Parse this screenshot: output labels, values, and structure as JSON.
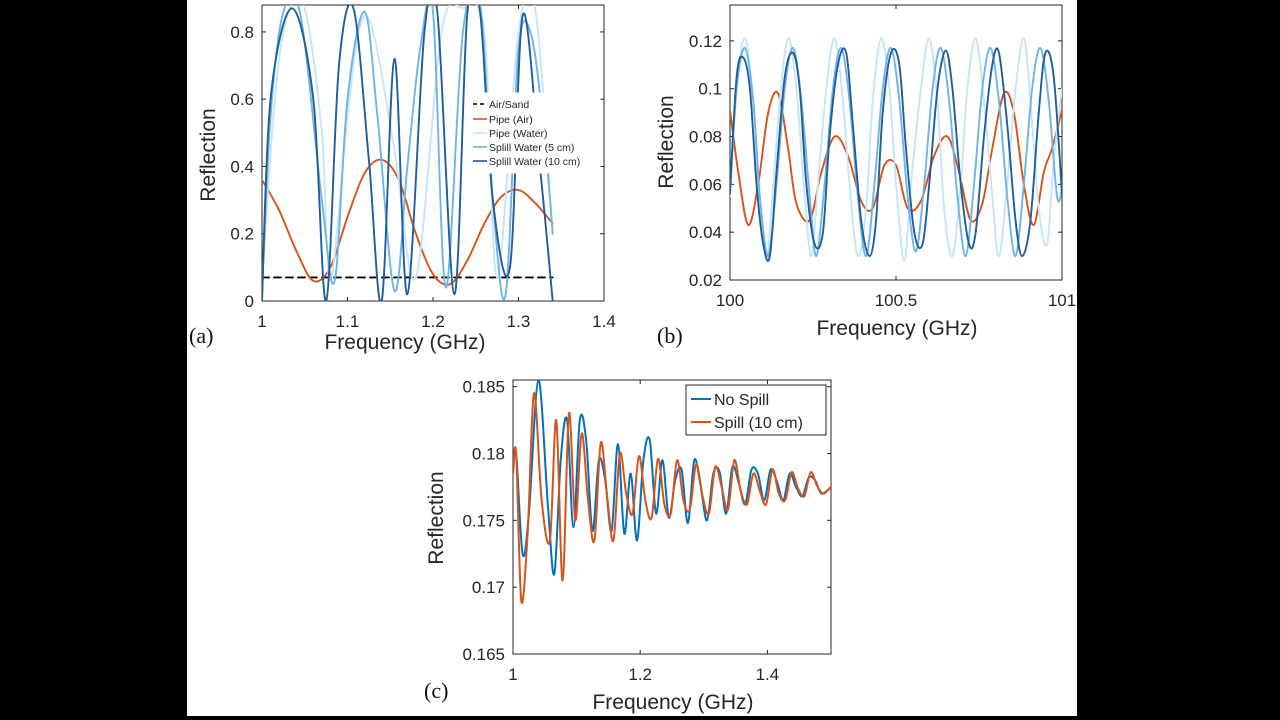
{
  "chart_data": [
    {
      "type": "line",
      "panel_label": "(a)",
      "xlabel": "Frequency (GHz)",
      "ylabel": "Reflection",
      "xlim": [
        1,
        1.4
      ],
      "ylim": [
        0,
        0.88
      ],
      "xticks": [
        1,
        1.1,
        1.2,
        1.3,
        1.4
      ],
      "xtick_labels": [
        "1",
        "1.1",
        "1.2",
        "1.3",
        "1.4"
      ],
      "yticks": [
        0,
        0.2,
        0.4,
        0.6,
        0.8
      ],
      "ytick_labels": [
        "0",
        "0.2",
        "0.4",
        "0.6",
        "0.8"
      ],
      "grid": false,
      "legend_position": "right",
      "series": [
        {
          "name": "Air/Sand",
          "color": "#000000",
          "dash": true,
          "x": [
            1,
            1.34
          ],
          "y": [
            0.07,
            0.07
          ]
        },
        {
          "name": "Pipe (Air)",
          "color": "#D95319",
          "x": [
            1,
            1.02,
            1.04,
            1.06,
            1.08,
            1.1,
            1.12,
            1.14,
            1.16,
            1.18,
            1.2,
            1.22,
            1.24,
            1.26,
            1.28,
            1.3,
            1.32,
            1.34
          ],
          "y": [
            0.36,
            0.27,
            0.15,
            0.06,
            0.1,
            0.25,
            0.38,
            0.42,
            0.36,
            0.2,
            0.08,
            0.05,
            0.12,
            0.23,
            0.31,
            0.33,
            0.29,
            0.23
          ]
        },
        {
          "name": "Pipe (Water)",
          "color": "#C6E5F6",
          "x": [
            1,
            1.015,
            1.03,
            1.05,
            1.07,
            1.08,
            1.1,
            1.115,
            1.13,
            1.155,
            1.18,
            1.21,
            1.235,
            1.26,
            1.275,
            1.3,
            1.32,
            1.34
          ],
          "y": [
            0.06,
            0.6,
            0.85,
            0.87,
            0.5,
            0.06,
            0.55,
            0.82,
            0.8,
            0.45,
            0.07,
            0.8,
            0.87,
            0.8,
            0.07,
            0.8,
            0.86,
            0.2
          ]
        },
        {
          "name": "Splill Water (5 cm)",
          "color": "#6EB5E6",
          "x": [
            1,
            1.01,
            1.025,
            1.045,
            1.07,
            1.085,
            1.1,
            1.12,
            1.135,
            1.155,
            1.17,
            1.185,
            1.2,
            1.215,
            1.235,
            1.255,
            1.27,
            1.285,
            1.3,
            1.315,
            1.33,
            1.34
          ],
          "y": [
            0.02,
            0.55,
            0.86,
            0.85,
            0.3,
            0.06,
            0.6,
            0.86,
            0.55,
            0.03,
            0.4,
            0.75,
            0.86,
            0.04,
            0.8,
            0.88,
            0.3,
            0.02,
            0.75,
            0.79,
            0.5,
            0.2
          ]
        },
        {
          "name": "Splill Water (10 cm)",
          "color": "#1F5D9C",
          "x": [
            1,
            1.01,
            1.035,
            1.06,
            1.075,
            1.09,
            1.107,
            1.125,
            1.14,
            1.155,
            1.17,
            1.19,
            1.205,
            1.225,
            1.24,
            1.255,
            1.27,
            1.29,
            1.305,
            1.325,
            1.34
          ],
          "y": [
            0.0,
            0.6,
            0.87,
            0.6,
            0.0,
            0.7,
            0.87,
            0.42,
            0.0,
            0.72,
            0.02,
            0.8,
            0.86,
            0.02,
            0.85,
            0.86,
            0.3,
            0.1,
            0.85,
            0.4,
            0.0
          ]
        }
      ]
    },
    {
      "type": "line",
      "panel_label": "(b)",
      "xlabel": "Frequency (GHz)",
      "ylabel": "Reflection",
      "xlim": [
        100,
        101
      ],
      "ylim": [
        0.02,
        0.135
      ],
      "xticks": [
        100,
        100.5,
        101
      ],
      "xtick_labels": [
        "100",
        "100.5",
        "101"
      ],
      "yticks": [
        0.02,
        0.04,
        0.06,
        0.08,
        0.1,
        0.12
      ],
      "ytick_labels": [
        "0.02",
        "0.04",
        "0.06",
        "0.08",
        "0.1",
        "0.12"
      ],
      "grid": false,
      "series": [
        {
          "name": "Pipe (Air)",
          "color": "#D95319",
          "x": [
            100,
            100.025,
            100.055,
            100.085,
            100.115,
            100.145,
            100.175,
            100.2,
            100.24,
            100.275,
            100.315,
            100.355,
            100.395,
            100.43,
            100.465,
            100.5,
            100.535,
            100.575,
            100.615,
            100.655,
            100.69,
            100.725,
            100.76,
            100.79,
            100.825,
            100.855,
            100.885,
            100.915,
            100.945,
            100.97,
            101
          ],
          "y": [
            0.091,
            0.065,
            0.043,
            0.06,
            0.09,
            0.098,
            0.075,
            0.052,
            0.045,
            0.065,
            0.08,
            0.072,
            0.053,
            0.05,
            0.068,
            0.068,
            0.05,
            0.053,
            0.072,
            0.08,
            0.065,
            0.045,
            0.052,
            0.075,
            0.098,
            0.09,
            0.06,
            0.043,
            0.065,
            0.075,
            0.091
          ]
        },
        {
          "name": "Pipe (Water)",
          "color": "#C6E5F6",
          "x": [
            100,
            100.02,
            100.045,
            100.07,
            100.085,
            100.11,
            100.125,
            100.15,
            100.175,
            100.2,
            100.225,
            100.245,
            100.265,
            100.29,
            100.315,
            100.34,
            100.36,
            100.385,
            100.41,
            100.43,
            100.455,
            100.48,
            100.5,
            100.525,
            100.545,
            100.575,
            100.6,
            100.625,
            100.645,
            100.67,
            100.695,
            100.715,
            100.74,
            100.765,
            100.79,
            100.81,
            100.835,
            100.86,
            100.885,
            100.905,
            100.93,
            100.955,
            100.975,
            101
          ],
          "y": [
            0.055,
            0.1,
            0.121,
            0.095,
            0.06,
            0.03,
            0.05,
            0.095,
            0.121,
            0.1,
            0.055,
            0.03,
            0.06,
            0.1,
            0.121,
            0.095,
            0.06,
            0.03,
            0.05,
            0.095,
            0.121,
            0.1,
            0.06,
            0.028,
            0.06,
            0.1,
            0.121,
            0.095,
            0.05,
            0.03,
            0.06,
            0.1,
            0.121,
            0.095,
            0.055,
            0.03,
            0.06,
            0.1,
            0.121,
            0.095,
            0.05,
            0.035,
            0.07,
            0.1
          ]
        },
        {
          "name": "Splill Water (5 cm)",
          "color": "#6EB5E6",
          "x": [
            100,
            100.02,
            100.045,
            100.07,
            100.09,
            100.115,
            100.14,
            100.165,
            100.19,
            100.215,
            100.24,
            100.26,
            100.285,
            100.31,
            100.335,
            100.36,
            100.385,
            100.41,
            100.435,
            100.46,
            100.485,
            100.51,
            100.535,
            100.56,
            100.585,
            100.61,
            100.635,
            100.66,
            100.685,
            100.71,
            100.735,
            100.76,
            100.785,
            100.81,
            100.835,
            100.86,
            100.885,
            100.91,
            100.935,
            100.96,
            100.985,
            101
          ],
          "y": [
            0.058,
            0.1,
            0.117,
            0.095,
            0.055,
            0.03,
            0.06,
            0.1,
            0.117,
            0.095,
            0.055,
            0.03,
            0.06,
            0.1,
            0.117,
            0.095,
            0.055,
            0.03,
            0.06,
            0.1,
            0.117,
            0.095,
            0.055,
            0.032,
            0.06,
            0.1,
            0.117,
            0.095,
            0.055,
            0.03,
            0.06,
            0.1,
            0.117,
            0.095,
            0.055,
            0.03,
            0.06,
            0.1,
            0.117,
            0.095,
            0.055,
            0.058
          ]
        },
        {
          "name": "Splill Water (10 cm)",
          "color": "#1F5D9C",
          "x": [
            100,
            100.02,
            100.04,
            100.06,
            100.08,
            100.1,
            100.12,
            100.14,
            100.165,
            100.19,
            100.21,
            100.23,
            100.255,
            100.28,
            100.3,
            100.325,
            100.35,
            100.37,
            100.395,
            100.42,
            100.44,
            100.46,
            100.485,
            100.51,
            100.53,
            100.555,
            100.58,
            100.6,
            100.625,
            100.65,
            100.67,
            100.695,
            100.72,
            100.74,
            100.765,
            100.79,
            100.81,
            100.835,
            100.86,
            100.88,
            100.905,
            100.93,
            100.95,
            100.975,
            101
          ],
          "y": [
            0.056,
            0.105,
            0.113,
            0.1,
            0.06,
            0.035,
            0.03,
            0.065,
            0.105,
            0.115,
            0.1,
            0.06,
            0.035,
            0.04,
            0.08,
            0.11,
            0.115,
            0.085,
            0.045,
            0.03,
            0.045,
            0.09,
            0.115,
            0.11,
            0.075,
            0.04,
            0.035,
            0.06,
            0.1,
            0.116,
            0.1,
            0.06,
            0.035,
            0.04,
            0.08,
            0.11,
            0.115,
            0.085,
            0.045,
            0.03,
            0.045,
            0.09,
            0.115,
            0.105,
            0.056
          ]
        }
      ]
    },
    {
      "type": "line",
      "panel_label": "(c)",
      "xlabel": "Frequency (GHz)",
      "ylabel": "Reflection",
      "xlim": [
        1,
        1.5
      ],
      "ylim": [
        0.165,
        0.1855
      ],
      "xticks": [
        1,
        1.2,
        1.4
      ],
      "xtick_labels": [
        "1",
        "1.2",
        "1.4"
      ],
      "yticks": [
        0.165,
        0.17,
        0.175,
        0.18,
        0.185
      ],
      "ytick_labels": [
        "0.165",
        "0.17",
        "0.175",
        "0.18",
        "0.185"
      ],
      "grid": false,
      "legend_position": "top-right",
      "series": [
        {
          "name": "No Spill",
          "color": "#0072BD",
          "x": [
            1,
            1.005,
            1.015,
            1.025,
            1.04,
            1.055,
            1.065,
            1.075,
            1.085,
            1.095,
            1.105,
            1.115,
            1.125,
            1.135,
            1.145,
            1.155,
            1.165,
            1.175,
            1.185,
            1.195,
            1.205,
            1.215,
            1.225,
            1.235,
            1.245,
            1.255,
            1.265,
            1.275,
            1.285,
            1.295,
            1.305,
            1.315,
            1.325,
            1.335,
            1.345,
            1.355,
            1.365,
            1.375,
            1.385,
            1.395,
            1.405,
            1.415,
            1.425,
            1.435,
            1.445,
            1.455,
            1.465,
            1.475,
            1.485,
            1.5
          ],
          "y": [
            0.1785,
            0.18,
            0.1725,
            0.1755,
            0.1855,
            0.176,
            0.171,
            0.1795,
            0.1825,
            0.1745,
            0.1825,
            0.181,
            0.1742,
            0.1795,
            0.178,
            0.1742,
            0.1807,
            0.174,
            0.1785,
            0.1735,
            0.1795,
            0.181,
            0.1755,
            0.1795,
            0.1752,
            0.178,
            0.1788,
            0.1748,
            0.1795,
            0.1776,
            0.175,
            0.1785,
            0.1786,
            0.1755,
            0.179,
            0.1778,
            0.1762,
            0.1788,
            0.1785,
            0.1765,
            0.1788,
            0.1779,
            0.1765,
            0.1785,
            0.1775,
            0.1768,
            0.1782,
            0.178,
            0.177,
            0.1775
          ]
        },
        {
          "name": "Spill (10 cm)",
          "color": "#D95319",
          "x": [
            1,
            1.005,
            1.013,
            1.023,
            1.033,
            1.045,
            1.058,
            1.068,
            1.078,
            1.088,
            1.098,
            1.108,
            1.118,
            1.128,
            1.138,
            1.148,
            1.158,
            1.168,
            1.178,
            1.188,
            1.198,
            1.208,
            1.218,
            1.228,
            1.238,
            1.248,
            1.258,
            1.268,
            1.278,
            1.288,
            1.298,
            1.308,
            1.318,
            1.328,
            1.338,
            1.348,
            1.358,
            1.368,
            1.378,
            1.388,
            1.398,
            1.408,
            1.418,
            1.428,
            1.438,
            1.448,
            1.458,
            1.468,
            1.478,
            1.488,
            1.5
          ],
          "y": [
            0.1785,
            0.18,
            0.169,
            0.174,
            0.1845,
            0.1765,
            0.1735,
            0.1825,
            0.1705,
            0.183,
            0.175,
            0.1815,
            0.1765,
            0.1735,
            0.1808,
            0.1768,
            0.1735,
            0.18,
            0.177,
            0.1755,
            0.1798,
            0.1765,
            0.1752,
            0.1796,
            0.1762,
            0.1755,
            0.1795,
            0.1765,
            0.1758,
            0.1792,
            0.1768,
            0.1755,
            0.179,
            0.1775,
            0.1758,
            0.1795,
            0.1772,
            0.1762,
            0.1785,
            0.1772,
            0.1762,
            0.1788,
            0.177,
            0.1765,
            0.1786,
            0.1774,
            0.1768,
            0.1786,
            0.1776,
            0.177,
            0.1775
          ]
        }
      ]
    }
  ]
}
